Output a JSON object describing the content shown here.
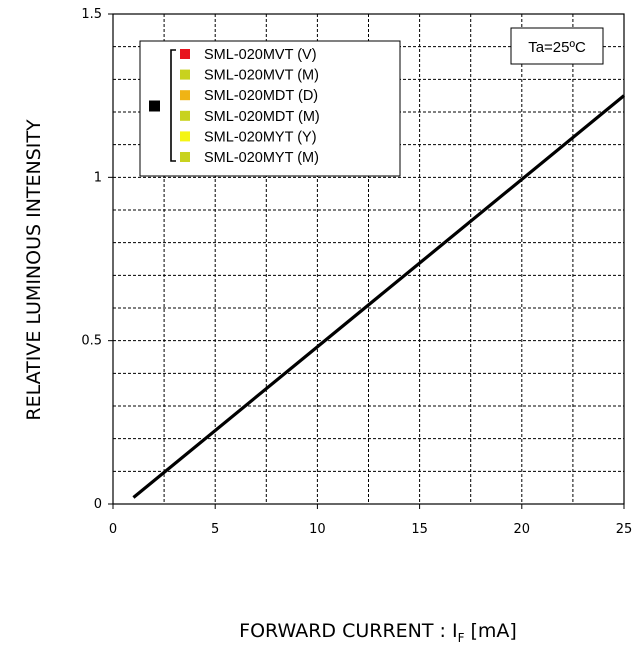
{
  "chart_data": {
    "type": "line",
    "title": "",
    "xlabel": "FORWARD CURRENT : I",
    "xlabel_subscript": "F",
    "xlabel_unit": " [mA]",
    "ylabel": "RELATIVE LUMINOUS INTENSITY",
    "xlim": [
      0,
      25
    ],
    "ylim": [
      0,
      1.5
    ],
    "x_ticks": [
      0,
      5,
      10,
      15,
      20,
      25
    ],
    "x_tick_labels": [
      "0",
      "5",
      "10",
      "15",
      "20",
      "25"
    ],
    "y_ticks": [
      0,
      0.5,
      1,
      1.5
    ],
    "y_tick_labels": [
      "0",
      "0.5",
      "1",
      "1.5"
    ],
    "grid": true,
    "grid_style": "dashed",
    "legend_position": "top-left",
    "series": [
      {
        "x": [
          1,
          25
        ],
        "y": [
          0.02,
          1.25
        ],
        "color": "#000000"
      }
    ],
    "legend_marker_color": "#000000",
    "legend_entries": [
      {
        "label": "SML-020MVT (V)",
        "color": "#e8141e"
      },
      {
        "label": "SML-020MVT (M)",
        "color": "#c8d21e"
      },
      {
        "label": "SML-020MDT (D)",
        "color": "#f0b414"
      },
      {
        "label": "SML-020MDT (M)",
        "color": "#c8d21e"
      },
      {
        "label": "SML-020MYT (Y)",
        "color": "#f5f514"
      },
      {
        "label": "SML-020MYT (M)",
        "color": "#c8d21e"
      }
    ],
    "annotation": "Ta=25ºC"
  }
}
